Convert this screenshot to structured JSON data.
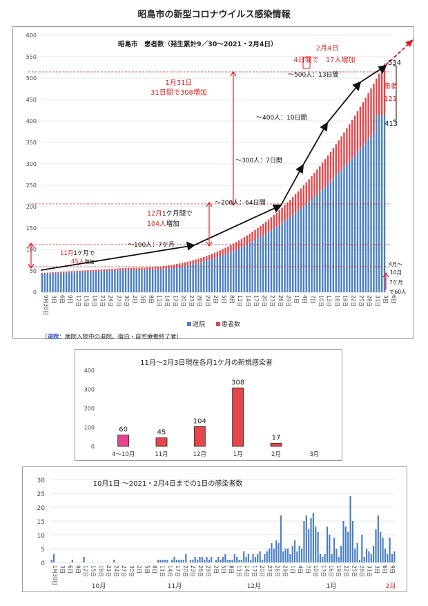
{
  "page_title": "昭島市の新型コロナウイルス感染情報",
  "note": {
    "prefix": "（",
    "label": "退院",
    "text": "：病院入院中の退院、宿泊・自宅療養終了者）"
  },
  "colors": {
    "discharged": "#4a7fc4",
    "patients": "#e4474b",
    "accent_red": "#e02020",
    "pink": "#e8468e",
    "grid": "#d0d0d0"
  },
  "chart_data": [
    {
      "type": "bar",
      "subtype": "stacked",
      "title": "昭島市　患者数（発生累計9／30～2021・2月4日）",
      "ylim": [
        0,
        600
      ],
      "yticks": [
        0,
        50,
        100,
        150,
        200,
        250,
        300,
        350,
        400,
        450,
        500,
        550,
        600
      ],
      "grid": true,
      "legend_position": "bottom",
      "legend": [
        "退院",
        "患者数"
      ],
      "xtick_labels": [
        "9月30日",
        "3日",
        "6日",
        "9日",
        "12日",
        "15日",
        "18日",
        "21日",
        "24日",
        "27日",
        "30日",
        "2日",
        "5日",
        "8日",
        "11日",
        "14日",
        "17日",
        "20日",
        "23日",
        "26日",
        "29日",
        "2日",
        "5日",
        "8日",
        "11日",
        "14日",
        "17日",
        "20日",
        "23日",
        "26日",
        "29日",
        "1日",
        "4日",
        "7日",
        "10日",
        "13日",
        "16日",
        "19日",
        "22日",
        "25日",
        "28日",
        "31日",
        "3日",
        "6日"
      ],
      "start_total": 45,
      "end_total": 534,
      "end_discharged": 413,
      "end_patients": 121,
      "x_start": "2020-09-30",
      "x_end": "2021-02-04",
      "milestones": [
        {
          "label": "～100人：7ケ月"
        },
        {
          "label": "～200人：64日間"
        },
        {
          "label": "～300人：7日間"
        },
        {
          "label": "～400人：10日間"
        },
        {
          "label": "～500人：13日間"
        }
      ],
      "annotations": {
        "a_nov": {
          "l1a": "11月",
          "l1b": "1ケ月で",
          "l2a": "45人",
          "l2b": "増加"
        },
        "a_dec": {
          "l1a": "12月",
          "l1b": "1ケ月間で",
          "l2a": "104人",
          "l2b": "増加"
        },
        "a_jan": {
          "l1": "1月31日",
          "l2": "31日間で308増加"
        },
        "a_feb": {
          "l1": "2月4日",
          "l2": "4日間で　17人増加"
        },
        "a_patients": {
          "l1": "患者",
          "l2": "121"
        },
        "a_534": "534",
        "a_413": "413",
        "a_apr": {
          "l1": "4月～",
          "l2": "10月",
          "l3": "7ケ月",
          "l4": "で60人"
        }
      }
    },
    {
      "type": "bar",
      "title": "11月～2月3日現在各月1ケ月の新規感染者",
      "categories": [
        "4～10月",
        "11月",
        "12月",
        "1月",
        "2月",
        "3月"
      ],
      "values": [
        60,
        45,
        104,
        308,
        17,
        null
      ],
      "ylim": [
        0,
        400
      ],
      "yticks": [
        0,
        100,
        200,
        300,
        400
      ],
      "grid": false
    },
    {
      "type": "bar",
      "title": "10月1日 ～2021・2月4日までの1日の感染者数",
      "ylim": [
        0,
        30
      ],
      "yticks": [
        0,
        5,
        10,
        15,
        20,
        25,
        30
      ],
      "grid": true,
      "xtick_labels": [
        "1月30日",
        "3日",
        "6日",
        "9日",
        "12日",
        "15日",
        "18日",
        "21日",
        "24日",
        "27日",
        "30日",
        "2日",
        "5日",
        "8日",
        "11日",
        "14日",
        "17日",
        "20日",
        "23日",
        "26日",
        "29日",
        "2日",
        "5日",
        "8日",
        "11日",
        "14日",
        "17日",
        "20日",
        "23日",
        "26日",
        "29日",
        "1日",
        "4日",
        "7日",
        "10日",
        "13日",
        "16日",
        "19日",
        "22日",
        "25日",
        "28日",
        "31日",
        "3日",
        "6日",
        "9日"
      ],
      "month_labels": [
        "10月",
        "11月",
        "12月",
        "1月",
        "2月"
      ],
      "values": [
        1,
        3,
        0,
        0,
        0,
        0,
        0,
        0,
        0,
        1,
        0,
        0,
        0,
        0,
        2,
        0,
        0,
        0,
        0,
        0,
        0,
        0,
        0,
        0,
        0,
        0,
        0,
        1,
        0,
        0,
        0,
        0,
        0,
        0,
        0,
        0,
        0,
        0,
        0,
        0,
        0,
        0,
        0,
        0,
        0,
        0,
        1,
        1,
        1,
        1,
        1,
        0,
        1,
        2,
        1,
        1,
        1,
        1,
        3,
        0,
        1,
        1,
        2,
        1,
        2,
        2,
        1,
        2,
        1,
        2,
        0,
        1,
        2,
        1,
        2,
        3,
        1,
        1,
        1,
        3,
        2,
        1,
        1,
        4,
        2,
        3,
        1,
        3,
        2,
        3,
        4,
        1,
        3,
        4,
        5,
        7,
        5,
        8,
        7,
        17,
        4,
        5,
        5,
        3,
        6,
        8,
        4,
        6,
        5,
        15,
        17,
        12,
        16,
        18,
        13,
        11,
        3,
        2,
        3,
        13,
        10,
        3,
        9,
        5,
        2,
        6,
        15,
        13,
        11,
        24,
        15,
        5,
        7,
        1,
        10,
        2,
        5,
        4,
        3,
        6,
        12,
        17,
        11,
        9,
        5,
        3,
        9,
        3,
        4
      ]
    }
  ]
}
